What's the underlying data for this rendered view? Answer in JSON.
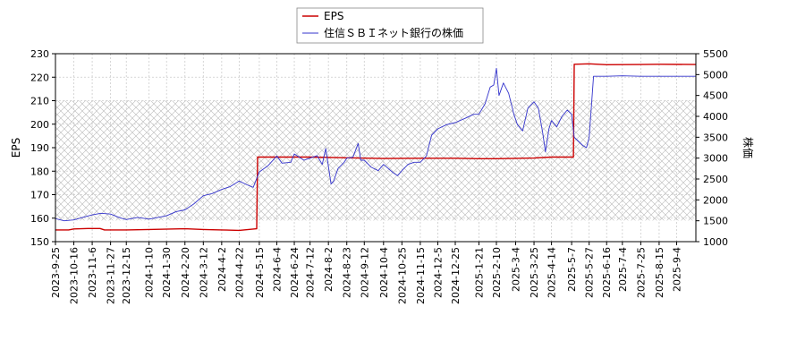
{
  "chart_data": {
    "type": "line",
    "grid": true,
    "legend_position": "top-center",
    "left_axis": {
      "label": "EPS",
      "ylim": [
        150,
        230
      ],
      "ticks": [
        150,
        160,
        170,
        180,
        190,
        200,
        210,
        220,
        230
      ]
    },
    "right_axis": {
      "label": "株価",
      "ylim": [
        1000,
        5500
      ],
      "ticks": [
        1000,
        1500,
        2000,
        2500,
        3000,
        3500,
        4000,
        4500,
        5000,
        5500
      ]
    },
    "hatched_band": {
      "axis": "left",
      "from": 159,
      "to": 210
    },
    "x_range": [
      "2023-09-25",
      "2025-09-26"
    ],
    "x_ticks": [
      "2023-9-25",
      "2023-10-16",
      "2023-11-6",
      "2023-11-27",
      "2023-12-15",
      "2024-1-10",
      "2024-1-30",
      "2024-2-20",
      "2024-3-12",
      "2024-4-2",
      "2024-4-22",
      "2024-5-15",
      "2024-6-4",
      "2024-6-24",
      "2024-7-12",
      "2024-8-2",
      "2024-8-23",
      "2024-9-12",
      "2024-10-4",
      "2024-10-25",
      "2024-11-15",
      "2024-12-5",
      "2024-12-25",
      "2025-1-21",
      "2025-2-10",
      "2025-3-4",
      "2025-3-25",
      "2025-4-14",
      "2025-5-7",
      "2025-5-27",
      "2025-6-16",
      "2025-7-4",
      "2025-7-25",
      "2025-8-15",
      "2025-9-4"
    ],
    "series": [
      {
        "name": "EPS",
        "axis": "left",
        "color": "#cc0000",
        "points": [
          [
            "2023-09-25",
            155
          ],
          [
            "2023-10-10",
            155
          ],
          [
            "2023-10-16",
            155.4
          ],
          [
            "2023-11-01",
            155.6
          ],
          [
            "2023-11-15",
            155.6
          ],
          [
            "2023-11-20",
            155
          ],
          [
            "2023-12-15",
            155
          ],
          [
            "2024-01-10",
            155.2
          ],
          [
            "2024-02-20",
            155.5
          ],
          [
            "2024-03-12",
            155.2
          ],
          [
            "2024-04-02",
            155
          ],
          [
            "2024-04-22",
            154.8
          ],
          [
            "2024-05-12",
            155.5
          ],
          [
            "2024-05-13",
            186
          ],
          [
            "2024-06-04",
            186
          ],
          [
            "2024-07-12",
            186
          ],
          [
            "2024-08-23",
            185.7
          ],
          [
            "2024-10-04",
            185.4
          ],
          [
            "2024-11-15",
            185.5
          ],
          [
            "2024-12-25",
            185.5
          ],
          [
            "2025-01-21",
            185.3
          ],
          [
            "2025-02-10",
            185.3
          ],
          [
            "2025-03-25",
            185.6
          ],
          [
            "2025-04-14",
            186
          ],
          [
            "2025-05-09",
            186
          ],
          [
            "2025-05-10",
            225.5
          ],
          [
            "2025-05-27",
            225.7
          ],
          [
            "2025-06-16",
            225.3
          ],
          [
            "2025-07-25",
            225.4
          ],
          [
            "2025-08-15",
            225.5
          ],
          [
            "2025-09-26",
            225.4
          ]
        ]
      },
      {
        "name": "住信ＳＢＩネット銀行の株価",
        "axis": "right",
        "color": "#3333cc",
        "points": [
          [
            "2023-09-25",
            1550
          ],
          [
            "2023-10-05",
            1500
          ],
          [
            "2023-10-16",
            1520
          ],
          [
            "2023-10-26",
            1580
          ],
          [
            "2023-11-06",
            1640
          ],
          [
            "2023-11-16",
            1680
          ],
          [
            "2023-11-27",
            1660
          ],
          [
            "2023-12-08",
            1570
          ],
          [
            "2023-12-15",
            1530
          ],
          [
            "2023-12-28",
            1580
          ],
          [
            "2024-01-10",
            1540
          ],
          [
            "2024-01-30",
            1620
          ],
          [
            "2024-02-10",
            1720
          ],
          [
            "2024-02-20",
            1760
          ],
          [
            "2024-03-01",
            1900
          ],
          [
            "2024-03-12",
            2100
          ],
          [
            "2024-03-22",
            2150
          ],
          [
            "2024-04-02",
            2250
          ],
          [
            "2024-04-12",
            2320
          ],
          [
            "2024-04-22",
            2450
          ],
          [
            "2024-05-01",
            2360
          ],
          [
            "2024-05-08",
            2300
          ],
          [
            "2024-05-15",
            2670
          ],
          [
            "2024-05-25",
            2820
          ],
          [
            "2024-06-04",
            3050
          ],
          [
            "2024-06-10",
            2880
          ],
          [
            "2024-06-20",
            2900
          ],
          [
            "2024-06-24",
            3100
          ],
          [
            "2024-07-05",
            2950
          ],
          [
            "2024-07-12",
            3000
          ],
          [
            "2024-07-20",
            3060
          ],
          [
            "2024-07-26",
            2850
          ],
          [
            "2024-07-30",
            3230
          ],
          [
            "2024-08-05",
            2380
          ],
          [
            "2024-08-08",
            2450
          ],
          [
            "2024-08-13",
            2750
          ],
          [
            "2024-08-20",
            2900
          ],
          [
            "2024-08-23",
            3000
          ],
          [
            "2024-08-30",
            3020
          ],
          [
            "2024-09-05",
            3350
          ],
          [
            "2024-09-08",
            2950
          ],
          [
            "2024-09-12",
            2950
          ],
          [
            "2024-09-20",
            2780
          ],
          [
            "2024-09-28",
            2700
          ],
          [
            "2024-10-04",
            2850
          ],
          [
            "2024-10-15",
            2650
          ],
          [
            "2024-10-20",
            2580
          ],
          [
            "2024-10-25",
            2700
          ],
          [
            "2024-11-01",
            2850
          ],
          [
            "2024-11-08",
            2900
          ],
          [
            "2024-11-15",
            2900
          ],
          [
            "2024-11-22",
            3050
          ],
          [
            "2024-11-28",
            3550
          ],
          [
            "2024-12-05",
            3700
          ],
          [
            "2024-12-15",
            3800
          ],
          [
            "2024-12-25",
            3850
          ],
          [
            "2025-01-05",
            3950
          ],
          [
            "2025-01-15",
            4050
          ],
          [
            "2025-01-21",
            4050
          ],
          [
            "2025-01-28",
            4300
          ],
          [
            "2025-02-03",
            4700
          ],
          [
            "2025-02-07",
            4750
          ],
          [
            "2025-02-10",
            5150
          ],
          [
            "2025-02-13",
            4500
          ],
          [
            "2025-02-18",
            4800
          ],
          [
            "2025-02-24",
            4550
          ],
          [
            "2025-03-02",
            4050
          ],
          [
            "2025-03-06",
            3800
          ],
          [
            "2025-03-12",
            3650
          ],
          [
            "2025-03-18",
            4200
          ],
          [
            "2025-03-25",
            4350
          ],
          [
            "2025-03-30",
            4200
          ],
          [
            "2025-04-04",
            3600
          ],
          [
            "2025-04-07",
            3150
          ],
          [
            "2025-04-11",
            3700
          ],
          [
            "2025-04-14",
            3900
          ],
          [
            "2025-04-20",
            3750
          ],
          [
            "2025-04-26",
            4000
          ],
          [
            "2025-05-02",
            4150
          ],
          [
            "2025-05-07",
            4050
          ],
          [
            "2025-05-10",
            3500
          ],
          [
            "2025-05-15",
            3400
          ],
          [
            "2025-05-20",
            3300
          ],
          [
            "2025-05-24",
            3250
          ],
          [
            "2025-05-27",
            3500
          ],
          [
            "2025-06-01",
            4960
          ],
          [
            "2025-06-16",
            4960
          ],
          [
            "2025-07-04",
            4970
          ],
          [
            "2025-07-25",
            4960
          ],
          [
            "2025-08-15",
            4960
          ],
          [
            "2025-09-04",
            4960
          ],
          [
            "2025-09-26",
            4960
          ]
        ]
      }
    ]
  }
}
